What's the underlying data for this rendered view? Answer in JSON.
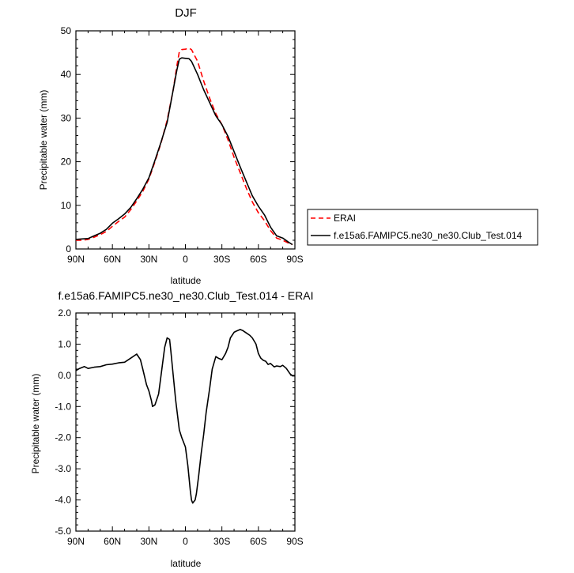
{
  "chart_data": [
    {
      "type": "line",
      "title": "DJF",
      "xlabel": "latitude",
      "ylabel": "Precipitable water (mm)",
      "xlim": [
        90,
        -90
      ],
      "ylim": [
        0,
        50
      ],
      "xticks": [
        "90N",
        "60N",
        "30N",
        "0",
        "30S",
        "60S",
        "90S"
      ],
      "yticks": [
        "0",
        "10",
        "20",
        "30",
        "40",
        "50"
      ],
      "legend_position": "right",
      "series": [
        {
          "name": "ERAI",
          "color": "#ff0000",
          "dash": true,
          "x": [
            90,
            85,
            80,
            75,
            70,
            65,
            60,
            55,
            50,
            45,
            40,
            35,
            30,
            25,
            20,
            15,
            10,
            7,
            5,
            3,
            0,
            -3,
            -5,
            -10,
            -15,
            -20,
            -25,
            -30,
            -35,
            -40,
            -45,
            -50,
            -55,
            -60,
            -65,
            -70,
            -75,
            -80,
            -85,
            -88
          ],
          "y": [
            2.0,
            2.0,
            2.2,
            2.7,
            3.3,
            4.0,
            5.2,
            6.3,
            7.3,
            9.0,
            11.0,
            13.2,
            16.0,
            20.0,
            24.3,
            29.5,
            36.5,
            42.0,
            45.2,
            45.7,
            45.8,
            46.0,
            45.7,
            43.0,
            38.5,
            34.5,
            31.0,
            28.5,
            25.0,
            21.0,
            17.5,
            14.0,
            10.8,
            8.3,
            6.5,
            4.2,
            2.5,
            2.0,
            1.3,
            1.0
          ]
        },
        {
          "name": "f.e15a6.FAMIPC5.ne30_ne30.Club_Test.014",
          "color": "#000000",
          "dash": false,
          "x": [
            90,
            85,
            80,
            75,
            70,
            65,
            60,
            55,
            50,
            45,
            40,
            35,
            30,
            25,
            20,
            15,
            10,
            7,
            5,
            3,
            0,
            -3,
            -5,
            -10,
            -15,
            -20,
            -25,
            -30,
            -35,
            -40,
            -45,
            -50,
            -55,
            -60,
            -65,
            -70,
            -75,
            -80,
            -85,
            -88
          ],
          "y": [
            2.2,
            2.3,
            2.4,
            3.0,
            3.6,
            4.5,
            5.9,
            6.9,
            8.0,
            9.5,
            11.5,
            13.7,
            16.3,
            20.3,
            24.5,
            29.0,
            36.5,
            41.0,
            43.5,
            43.8,
            43.7,
            43.6,
            43.0,
            40.0,
            36.5,
            33.5,
            30.5,
            28.5,
            25.8,
            22.3,
            18.8,
            15.5,
            12.2,
            9.8,
            7.8,
            5.0,
            3.0,
            2.5,
            1.5,
            1.0
          ]
        }
      ]
    },
    {
      "type": "line",
      "title": "f.e15a6.FAMIPC5.ne30_ne30.Club_Test.014 - ERAI",
      "xlabel": "latitude",
      "ylabel": "Precipitable water (mm)",
      "xlim": [
        90,
        -90
      ],
      "ylim": [
        -5.0,
        2.0
      ],
      "xticks": [
        "90N",
        "60N",
        "30N",
        "0",
        "30S",
        "60S",
        "90S"
      ],
      "yticks": [
        "-5.0",
        "-4.0",
        "-3.0",
        "-2.0",
        "-1.0",
        "0.0",
        "1.0",
        "2.0"
      ],
      "series": [
        {
          "color": "#000000",
          "dash": false,
          "x": [
            90,
            87,
            83,
            80,
            75,
            70,
            65,
            60,
            55,
            50,
            45,
            40,
            37,
            35,
            32,
            30,
            28,
            27,
            25,
            22,
            20,
            17,
            15,
            13,
            12,
            10,
            8,
            5,
            3,
            0,
            -2,
            -4,
            -5,
            -6,
            -7,
            -8,
            -9,
            -10,
            -11,
            -13,
            -15,
            -17,
            -20,
            -22,
            -25,
            -27,
            -30,
            -33,
            -35,
            -37,
            -40,
            -42,
            -45,
            -47,
            -50,
            -53,
            -55,
            -58,
            -60,
            -62,
            -64,
            -66,
            -68,
            -70,
            -73,
            -75,
            -78,
            -80,
            -83,
            -86,
            -88,
            -90
          ],
          "y": [
            0.15,
            0.22,
            0.28,
            0.22,
            0.26,
            0.28,
            0.34,
            0.36,
            0.4,
            0.42,
            0.55,
            0.68,
            0.5,
            0.2,
            -0.3,
            -0.5,
            -0.8,
            -1.0,
            -0.95,
            -0.6,
            0.0,
            0.9,
            1.2,
            1.15,
            0.8,
            0.0,
            -0.8,
            -1.75,
            -2.0,
            -2.3,
            -2.9,
            -3.7,
            -4.0,
            -4.1,
            -4.05,
            -4.0,
            -3.8,
            -3.5,
            -3.2,
            -2.5,
            -1.9,
            -1.2,
            -0.4,
            0.2,
            0.6,
            0.55,
            0.5,
            0.7,
            0.9,
            1.2,
            1.38,
            1.42,
            1.47,
            1.44,
            1.36,
            1.28,
            1.2,
            1.0,
            0.7,
            0.55,
            0.48,
            0.45,
            0.35,
            0.38,
            0.27,
            0.3,
            0.28,
            0.32,
            0.22,
            0.05,
            -0.02,
            -0.02
          ]
        }
      ]
    }
  ]
}
